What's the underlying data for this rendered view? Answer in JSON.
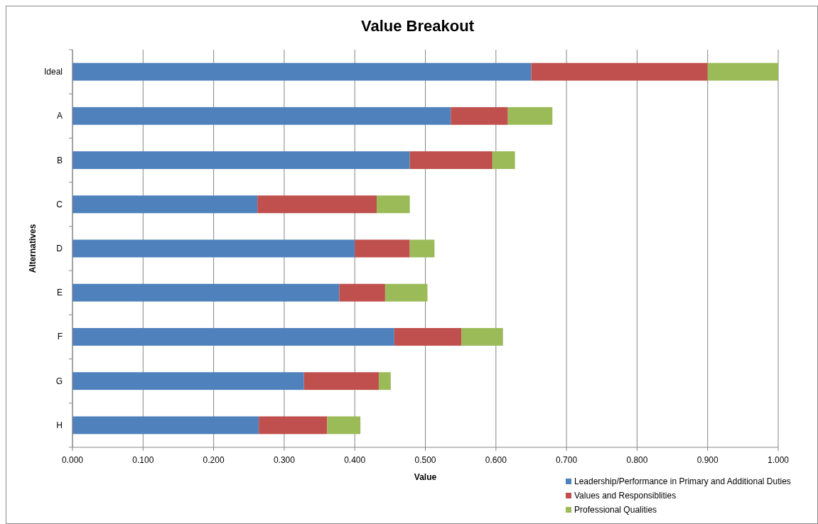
{
  "chart_data": {
    "type": "bar",
    "orientation": "horizontal",
    "stacked": true,
    "title": "Value Breakout",
    "xlabel": "Value",
    "ylabel": "Alternatives",
    "categories": [
      "Ideal",
      "A",
      "B",
      "C",
      "D",
      "E",
      "F",
      "G",
      "H"
    ],
    "series": [
      {
        "name": "Leadership/Performance in Primary and Additional Duties",
        "color": "#4f81bd",
        "values": [
          0.65,
          0.536,
          0.478,
          0.262,
          0.4,
          0.378,
          0.456,
          0.328,
          0.264
        ]
      },
      {
        "name": "Values and Responsiblities",
        "color": "#c0504d",
        "values": [
          0.25,
          0.081,
          0.117,
          0.169,
          0.078,
          0.065,
          0.095,
          0.106,
          0.097
        ]
      },
      {
        "name": "Professional Qualities",
        "color": "#9bbb59",
        "values": [
          0.1,
          0.063,
          0.032,
          0.047,
          0.035,
          0.06,
          0.059,
          0.017,
          0.047
        ]
      }
    ],
    "xlim": [
      0,
      1
    ],
    "xticks": [
      {
        "value": 0,
        "label": "0.000"
      },
      {
        "value": 0.1,
        "label": "0.100"
      },
      {
        "value": 0.2,
        "label": "0.200"
      },
      {
        "value": 0.3,
        "label": "0.300"
      },
      {
        "value": 0.4,
        "label": "0.400"
      },
      {
        "value": 0.5,
        "label": "0.500"
      },
      {
        "value": 0.6,
        "label": "0.600"
      },
      {
        "value": 0.7,
        "label": "0.700"
      },
      {
        "value": 0.8,
        "label": "0.800"
      },
      {
        "value": 0.9,
        "label": "0.900"
      },
      {
        "value": 1,
        "label": "1.000"
      }
    ],
    "grid": "x",
    "legend": "bottom right"
  }
}
